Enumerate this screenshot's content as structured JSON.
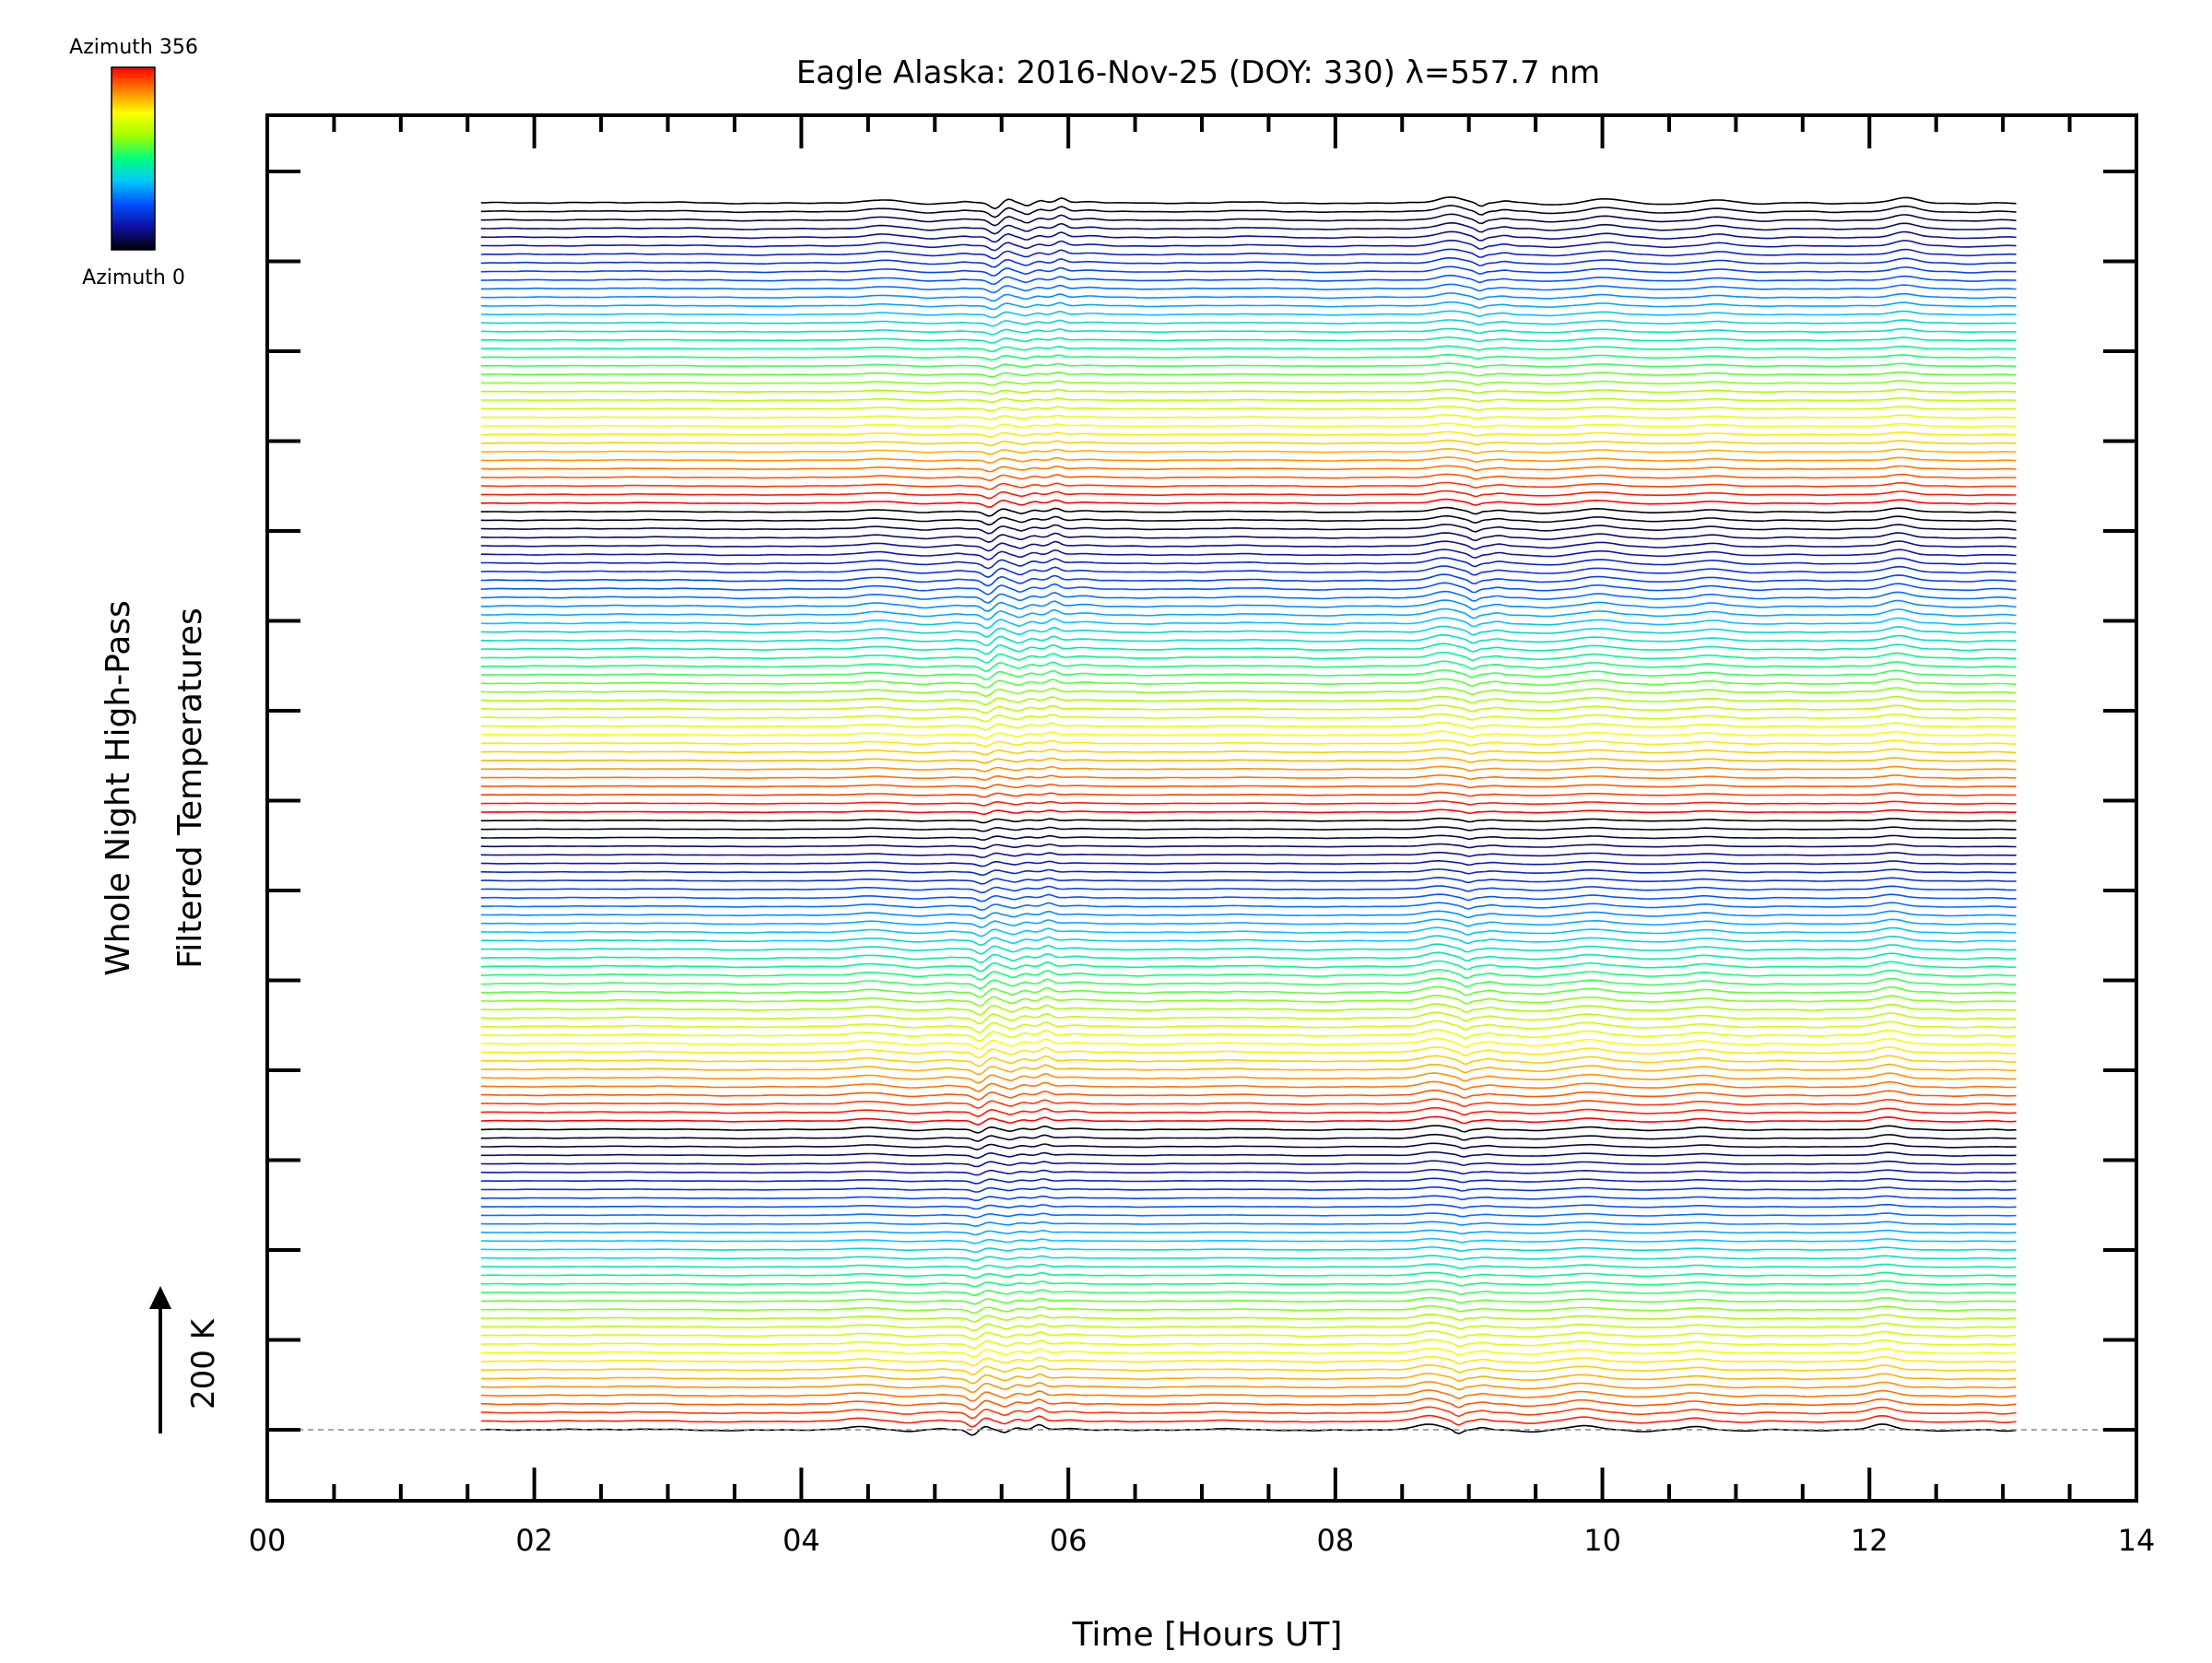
{
  "chart_data": {
    "type": "line",
    "title": "Eagle Alaska: 2016-Nov-25 (DOY: 330) λ=557.7 nm",
    "xlabel": "Time [Hours UT]",
    "ylabel": [
      "Whole Night High-Pass",
      "Filtered Temperatures"
    ],
    "xlim": [
      0,
      14
    ],
    "x_tick_labels": [
      "00",
      "02",
      "04",
      "06",
      "08",
      "10",
      "12",
      "14"
    ],
    "x_tick_values": [
      0,
      2,
      4,
      6,
      8,
      10,
      12,
      14
    ],
    "x_range_data": [
      1.6,
      13.1
    ],
    "n_traces": 144,
    "azimuth_range_deg": [
      0,
      356
    ],
    "trace_offset_K": 40,
    "baseline_dashed": true,
    "scale_bar_label": "200 K",
    "colorbar": {
      "label_top": "Azimuth 356",
      "label_bottom": "Azimuth 0",
      "colormap": [
        "#000000",
        "#1010a0",
        "#0050ff",
        "#00c8ff",
        "#00ff80",
        "#a0ff00",
        "#ffff00",
        "#ff8000",
        "#ff0000"
      ]
    },
    "features": [
      {
        "t": 4.45,
        "amp": 60,
        "w": 0.16
      },
      {
        "t": 4.8,
        "amp": -30,
        "w": 0.1
      },
      {
        "t": 5.05,
        "amp": 20,
        "w": 0.05
      },
      {
        "t": 5.28,
        "amp": -120,
        "w": 0.05
      },
      {
        "t": 5.38,
        "amp": 80,
        "w": 0.05
      },
      {
        "t": 5.52,
        "amp": -60,
        "w": 0.04
      },
      {
        "t": 5.62,
        "amp": 40,
        "w": 0.04
      },
      {
        "t": 5.78,
        "amp": 100,
        "w": 0.05
      },
      {
        "t": 6.0,
        "amp": 30,
        "w": 0.1
      },
      {
        "t": 6.5,
        "amp": -15,
        "w": 0.15
      },
      {
        "t": 7.2,
        "amp": 15,
        "w": 0.2
      },
      {
        "t": 7.8,
        "amp": -20,
        "w": 0.2
      },
      {
        "t": 8.7,
        "amp": 120,
        "w": 0.13
      },
      {
        "t": 8.92,
        "amp": -80,
        "w": 0.04
      },
      {
        "t": 9.1,
        "amp": 40,
        "w": 0.06
      },
      {
        "t": 9.45,
        "amp": -40,
        "w": 0.15
      },
      {
        "t": 9.85,
        "amp": 80,
        "w": 0.16
      },
      {
        "t": 10.3,
        "amp": -30,
        "w": 0.15
      },
      {
        "t": 10.7,
        "amp": 60,
        "w": 0.13
      },
      {
        "t": 11.05,
        "amp": -20,
        "w": 0.12
      },
      {
        "t": 11.55,
        "amp": -15,
        "w": 0.15
      },
      {
        "t": 12.1,
        "amp": 110,
        "w": 0.12
      },
      {
        "t": 12.6,
        "amp": -25,
        "w": 0.15
      },
      {
        "t": 13.0,
        "amp": -20,
        "w": 0.08
      },
      {
        "t": 2.7,
        "amp": 10,
        "w": 0.4
      },
      {
        "t": 3.5,
        "amp": -15,
        "w": 0.3
      }
    ]
  }
}
